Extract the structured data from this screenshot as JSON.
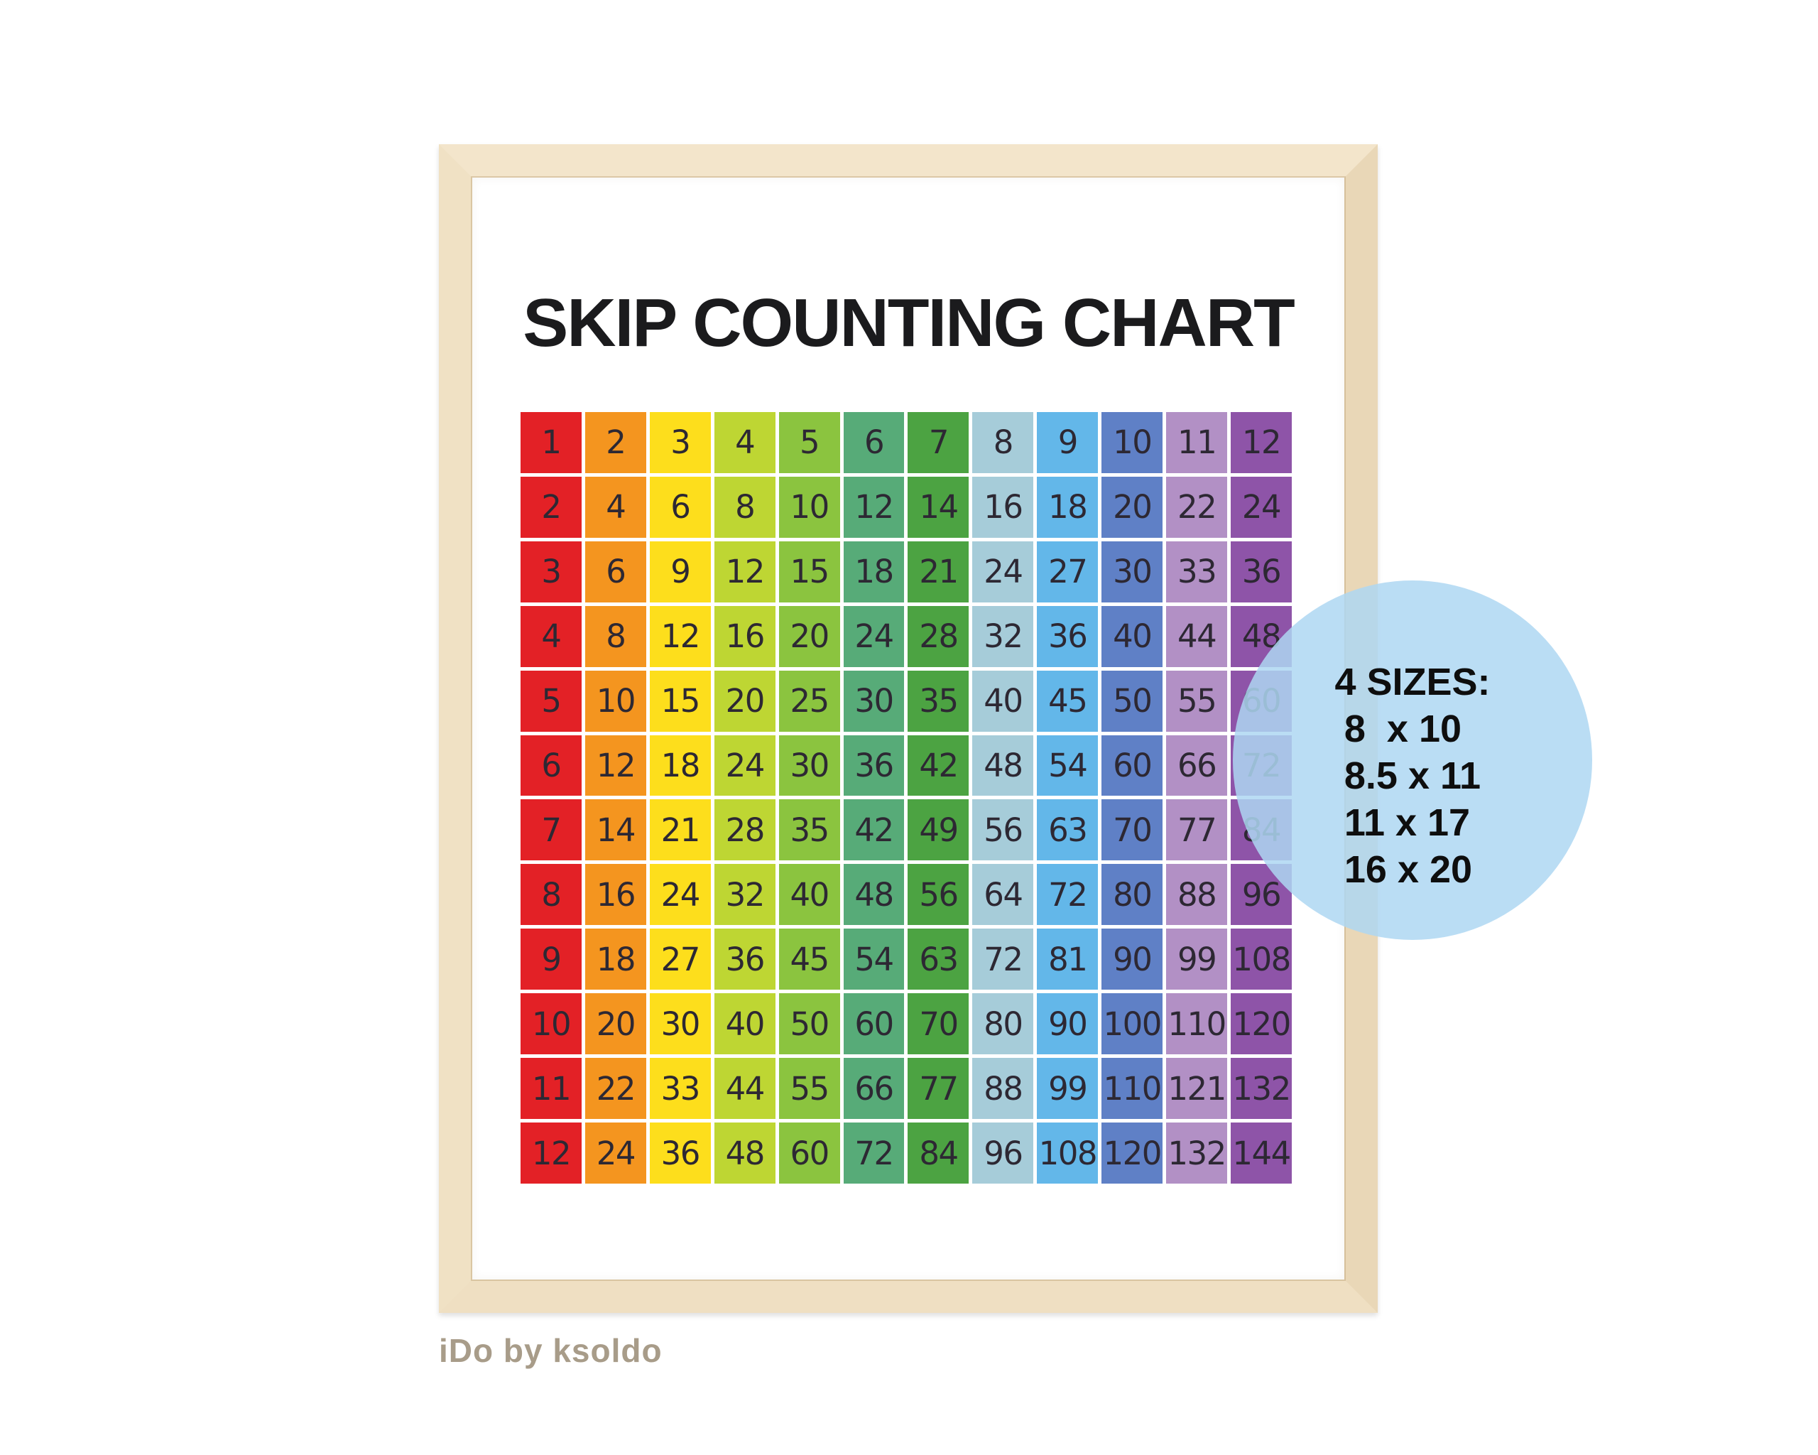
{
  "poster": {
    "title": "SKIP COUNTING CHART",
    "title_color": "#1b1b1d"
  },
  "size_badge": {
    "heading": "4 SIZES:",
    "sizes": [
      "8  x 10",
      "8.5 x 11",
      "11 x 17",
      "16 x 20"
    ],
    "circle_color": "rgba(174, 215, 242, 0.85)",
    "text_color": "#0e0e0e"
  },
  "watermark": {
    "text": "iDo by ksoldo",
    "color": "#a89c89"
  },
  "frame": {
    "wood_color": "#f0e1c4"
  },
  "chart_data": {
    "type": "table",
    "title": "SKIP COUNTING CHART",
    "description": "12 x 12 skip counting / multiplication grid; cell value = row factor × column factor",
    "row_factors": [
      1,
      2,
      3,
      4,
      5,
      6,
      7,
      8,
      9,
      10,
      11,
      12
    ],
    "column_factors": [
      1,
      2,
      3,
      4,
      5,
      6,
      7,
      8,
      9,
      10,
      11,
      12
    ],
    "column_colors": [
      "#e32126",
      "#f4951f",
      "#fdde1c",
      "#bed633",
      "#8bc43f",
      "#57ab78",
      "#4ca342",
      "#a6ccd9",
      "#63b7e9",
      "#5f80c6",
      "#b290c5",
      "#8e54a8"
    ],
    "number_color": "#2d2833",
    "grid_gap_color": "#ffffff",
    "values": [
      [
        1,
        2,
        3,
        4,
        5,
        6,
        7,
        8,
        9,
        10,
        11,
        12
      ],
      [
        2,
        4,
        6,
        8,
        10,
        12,
        14,
        16,
        18,
        20,
        22,
        24
      ],
      [
        3,
        6,
        9,
        12,
        15,
        18,
        21,
        24,
        27,
        30,
        33,
        36
      ],
      [
        4,
        8,
        12,
        16,
        20,
        24,
        28,
        32,
        36,
        40,
        44,
        48
      ],
      [
        5,
        10,
        15,
        20,
        25,
        30,
        35,
        40,
        45,
        50,
        55,
        60
      ],
      [
        6,
        12,
        18,
        24,
        30,
        36,
        42,
        48,
        54,
        60,
        66,
        72
      ],
      [
        7,
        14,
        21,
        28,
        35,
        42,
        49,
        56,
        63,
        70,
        77,
        84
      ],
      [
        8,
        16,
        24,
        32,
        40,
        48,
        56,
        64,
        72,
        80,
        88,
        96
      ],
      [
        9,
        18,
        27,
        36,
        45,
        54,
        63,
        72,
        81,
        90,
        99,
        108
      ],
      [
        10,
        20,
        30,
        40,
        50,
        60,
        70,
        80,
        90,
        100,
        110,
        120
      ],
      [
        11,
        22,
        33,
        44,
        55,
        66,
        77,
        88,
        99,
        110,
        121,
        132
      ],
      [
        12,
        24,
        36,
        48,
        60,
        72,
        84,
        96,
        108,
        120,
        132,
        144
      ]
    ]
  }
}
